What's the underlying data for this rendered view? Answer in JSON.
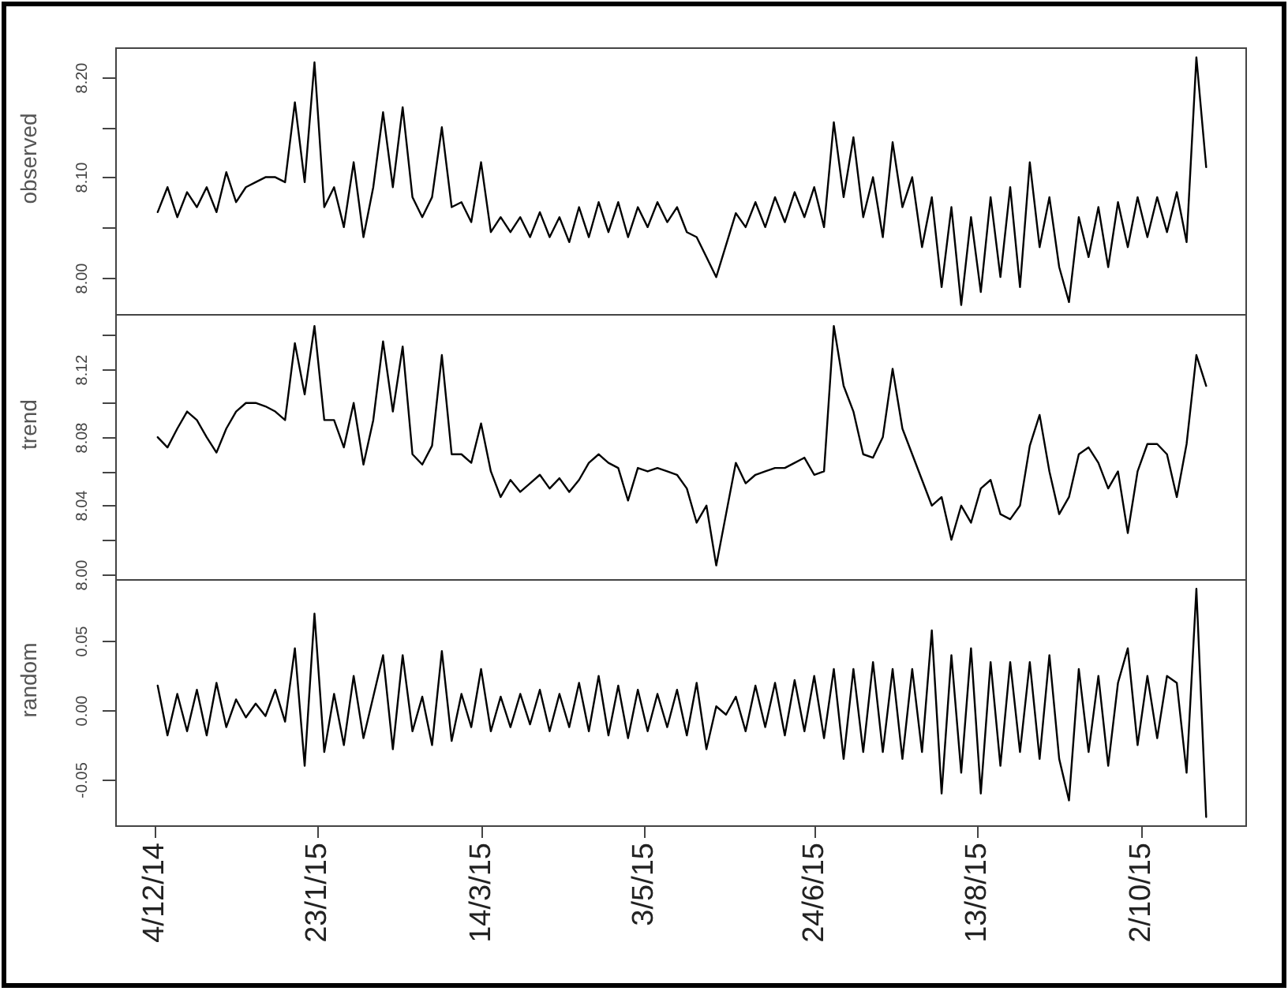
{
  "chart_data": [
    {
      "type": "line",
      "ylabel": "observed",
      "tick_labels": "y",
      "color": "#000000",
      "xlim": [
        "2014-11-22",
        "2015-11-03"
      ],
      "ylim": [
        7.963,
        8.23
      ],
      "yticks": [
        {
          "value": 8,
          "label": "8.00"
        },
        {
          "value": 8.05,
          "label": null
        },
        {
          "value": 8.1,
          "label": "8.10"
        },
        {
          "value": 8.15,
          "label": null
        },
        {
          "value": 8.2,
          "label": "8.20"
        }
      ],
      "x": [
        "2014-12-05",
        "2014-12-08",
        "2014-12-11",
        "2014-12-14",
        "2014-12-17",
        "2014-12-20",
        "2014-12-23",
        "2014-12-26",
        "2014-12-29",
        "2015-01-01",
        "2015-01-04",
        "2015-01-07",
        "2015-01-10",
        "2015-01-13",
        "2015-01-16",
        "2015-01-19",
        "2015-01-22",
        "2015-01-25",
        "2015-01-28",
        "2015-01-31",
        "2015-02-03",
        "2015-02-06",
        "2015-02-09",
        "2015-02-12",
        "2015-02-15",
        "2015-02-18",
        "2015-02-21",
        "2015-02-24",
        "2015-02-27",
        "2015-03-02",
        "2015-03-05",
        "2015-03-08",
        "2015-03-11",
        "2015-03-14",
        "2015-03-17",
        "2015-03-20",
        "2015-03-23",
        "2015-03-26",
        "2015-03-29",
        "2015-04-01",
        "2015-04-04",
        "2015-04-07",
        "2015-04-10",
        "2015-04-13",
        "2015-04-16",
        "2015-04-19",
        "2015-04-22",
        "2015-04-25",
        "2015-04-28",
        "2015-05-01",
        "2015-05-04",
        "2015-05-07",
        "2015-05-10",
        "2015-05-13",
        "2015-05-16",
        "2015-05-19",
        "2015-05-22",
        "2015-05-25",
        "2015-05-28",
        "2015-05-31",
        "2015-06-03",
        "2015-06-06",
        "2015-06-09",
        "2015-06-12",
        "2015-06-15",
        "2015-06-18",
        "2015-06-21",
        "2015-06-24",
        "2015-06-27",
        "2015-06-30",
        "2015-07-03",
        "2015-07-06",
        "2015-07-09",
        "2015-07-12",
        "2015-07-15",
        "2015-07-18",
        "2015-07-21",
        "2015-07-24",
        "2015-07-27",
        "2015-07-30",
        "2015-08-02",
        "2015-08-05",
        "2015-08-08",
        "2015-08-11",
        "2015-08-14",
        "2015-08-17",
        "2015-08-20",
        "2015-08-23",
        "2015-08-26",
        "2015-08-29",
        "2015-09-01",
        "2015-09-04",
        "2015-09-07",
        "2015-09-10",
        "2015-09-13",
        "2015-09-16",
        "2015-09-19",
        "2015-09-22",
        "2015-09-25",
        "2015-09-28",
        "2015-10-01",
        "2015-10-04",
        "2015-10-07",
        "2015-10-10",
        "2015-10-13",
        "2015-10-16",
        "2015-10-19",
        "2015-10-22"
      ],
      "values": [
        8.065,
        8.09,
        8.06,
        8.085,
        8.07,
        8.09,
        8.065,
        8.105,
        8.075,
        8.09,
        8.095,
        8.1,
        8.1,
        8.095,
        8.175,
        8.095,
        8.215,
        8.07,
        8.09,
        8.05,
        8.115,
        8.04,
        8.09,
        8.165,
        8.09,
        8.17,
        8.08,
        8.06,
        8.08,
        8.15,
        8.07,
        8.075,
        8.055,
        8.115,
        8.045,
        8.06,
        8.045,
        8.06,
        8.04,
        8.065,
        8.04,
        8.06,
        8.035,
        8.07,
        8.04,
        8.075,
        8.045,
        8.075,
        8.04,
        8.07,
        8.05,
        8.075,
        8.055,
        8.07,
        8.045,
        8.04,
        8.02,
        8.0,
        8.032,
        8.064,
        8.05,
        8.075,
        8.05,
        8.08,
        8.055,
        8.085,
        8.06,
        8.09,
        8.05,
        8.155,
        8.08,
        8.14,
        8.06,
        8.1,
        8.04,
        8.135,
        8.07,
        8.1,
        8.03,
        8.08,
        7.99,
        8.07,
        7.972,
        8.06,
        7.985,
        8.08,
        8.0,
        8.09,
        7.99,
        8.115,
        8.03,
        8.08,
        8.01,
        7.975,
        8.06,
        8.02,
        8.07,
        8.01,
        8.075,
        8.03,
        8.08,
        8.04,
        8.08,
        8.045,
        8.085,
        8.035,
        8.22,
        8.11
      ]
    },
    {
      "type": "line",
      "ylabel": "trend",
      "tick_labels": "y",
      "color": "#000000",
      "xlim": [
        "2014-11-22",
        "2015-11-03"
      ],
      "ylim": [
        7.997,
        8.152
      ],
      "yticks": [
        {
          "value": 8,
          "label": "8.00"
        },
        {
          "value": 8.02,
          "label": null
        },
        8.04,
        {
          "value": 8.06,
          "label": null
        },
        8.08,
        {
          "value": 8.1,
          "label": null
        },
        8.12,
        {
          "value": 8.14,
          "label": null
        }
      ],
      "x": [
        "2014-12-05",
        "2014-12-08",
        "2014-12-11",
        "2014-12-14",
        "2014-12-17",
        "2014-12-20",
        "2014-12-23",
        "2014-12-26",
        "2014-12-29",
        "2015-01-01",
        "2015-01-04",
        "2015-01-07",
        "2015-01-10",
        "2015-01-13",
        "2015-01-16",
        "2015-01-19",
        "2015-01-22",
        "2015-01-25",
        "2015-01-28",
        "2015-01-31",
        "2015-02-03",
        "2015-02-06",
        "2015-02-09",
        "2015-02-12",
        "2015-02-15",
        "2015-02-18",
        "2015-02-21",
        "2015-02-24",
        "2015-02-27",
        "2015-03-02",
        "2015-03-05",
        "2015-03-08",
        "2015-03-11",
        "2015-03-14",
        "2015-03-17",
        "2015-03-20",
        "2015-03-23",
        "2015-03-26",
        "2015-03-29",
        "2015-04-01",
        "2015-04-04",
        "2015-04-07",
        "2015-04-10",
        "2015-04-13",
        "2015-04-16",
        "2015-04-19",
        "2015-04-22",
        "2015-04-25",
        "2015-04-28",
        "2015-05-01",
        "2015-05-04",
        "2015-05-07",
        "2015-05-10",
        "2015-05-13",
        "2015-05-16",
        "2015-05-19",
        "2015-05-22",
        "2015-05-25",
        "2015-05-28",
        "2015-05-31",
        "2015-06-03",
        "2015-06-06",
        "2015-06-09",
        "2015-06-12",
        "2015-06-15",
        "2015-06-18",
        "2015-06-21",
        "2015-06-24",
        "2015-06-27",
        "2015-06-30",
        "2015-07-03",
        "2015-07-06",
        "2015-07-09",
        "2015-07-12",
        "2015-07-15",
        "2015-07-18",
        "2015-07-21",
        "2015-07-24",
        "2015-07-27",
        "2015-07-30",
        "2015-08-02",
        "2015-08-05",
        "2015-08-08",
        "2015-08-11",
        "2015-08-14",
        "2015-08-17",
        "2015-08-20",
        "2015-08-23",
        "2015-08-26",
        "2015-08-29",
        "2015-09-01",
        "2015-09-04",
        "2015-09-07",
        "2015-09-10",
        "2015-09-13",
        "2015-09-16",
        "2015-09-19",
        "2015-09-22",
        "2015-09-25",
        "2015-09-28",
        "2015-10-01",
        "2015-10-04",
        "2015-10-07",
        "2015-10-10",
        "2015-10-13",
        "2015-10-16",
        "2015-10-19",
        "2015-10-22"
      ],
      "values": [
        8.08,
        8.074,
        8.085,
        8.095,
        8.09,
        8.08,
        8.071,
        8.085,
        8.095,
        8.1,
        8.1,
        8.098,
        8.095,
        8.09,
        8.135,
        8.105,
        8.145,
        8.09,
        8.09,
        8.074,
        8.1,
        8.064,
        8.09,
        8.136,
        8.095,
        8.133,
        8.07,
        8.064,
        8.075,
        8.128,
        8.07,
        8.07,
        8.065,
        8.088,
        8.06,
        8.045,
        8.055,
        8.048,
        8.053,
        8.058,
        8.05,
        8.056,
        8.048,
        8.055,
        8.065,
        8.07,
        8.065,
        8.062,
        8.043,
        8.062,
        8.06,
        8.062,
        8.06,
        8.058,
        8.05,
        8.03,
        8.04,
        8.005,
        8.035,
        8.065,
        8.053,
        8.058,
        8.06,
        8.062,
        8.062,
        8.065,
        8.068,
        8.058,
        8.06,
        8.145,
        8.11,
        8.095,
        8.07,
        8.068,
        8.08,
        8.12,
        8.085,
        8.07,
        8.055,
        8.04,
        8.045,
        8.02,
        8.04,
        8.03,
        8.05,
        8.055,
        8.035,
        8.032,
        8.04,
        8.075,
        8.093,
        8.06,
        8.035,
        8.045,
        8.07,
        8.074,
        8.065,
        8.05,
        8.06,
        8.024,
        8.06,
        8.076,
        8.076,
        8.07,
        8.045,
        8.076,
        8.128,
        8.11
      ]
    },
    {
      "type": "line",
      "ylabel": "random",
      "color": "#000000",
      "xlim": [
        "2014-11-22",
        "2015-11-03"
      ],
      "ylim": [
        -0.083,
        0.095
      ],
      "xticks": [
        {
          "value": "2014-12-04",
          "label": "4/12/14"
        },
        {
          "value": "2015-01-23",
          "label": "23/1/15"
        },
        {
          "value": "2015-03-14",
          "label": "14/3/15"
        },
        {
          "value": "2015-05-03",
          "label": "3/5/15"
        },
        {
          "value": "2015-06-24",
          "label": "24/6/15"
        },
        {
          "value": "2015-08-13",
          "label": "13/8/15"
        },
        {
          "value": "2015-10-02",
          "label": "2/10/15"
        }
      ],
      "yticks": [
        -0.05,
        {
          "value": 0,
          "label": "0.00"
        },
        0.05
      ],
      "x": [
        "2014-12-05",
        "2014-12-08",
        "2014-12-11",
        "2014-12-14",
        "2014-12-17",
        "2014-12-20",
        "2014-12-23",
        "2014-12-26",
        "2014-12-29",
        "2015-01-01",
        "2015-01-04",
        "2015-01-07",
        "2015-01-10",
        "2015-01-13",
        "2015-01-16",
        "2015-01-19",
        "2015-01-22",
        "2015-01-25",
        "2015-01-28",
        "2015-01-31",
        "2015-02-03",
        "2015-02-06",
        "2015-02-09",
        "2015-02-12",
        "2015-02-15",
        "2015-02-18",
        "2015-02-21",
        "2015-02-24",
        "2015-02-27",
        "2015-03-02",
        "2015-03-05",
        "2015-03-08",
        "2015-03-11",
        "2015-03-14",
        "2015-03-17",
        "2015-03-20",
        "2015-03-23",
        "2015-03-26",
        "2015-03-29",
        "2015-04-01",
        "2015-04-04",
        "2015-04-07",
        "2015-04-10",
        "2015-04-13",
        "2015-04-16",
        "2015-04-19",
        "2015-04-22",
        "2015-04-25",
        "2015-04-28",
        "2015-05-01",
        "2015-05-04",
        "2015-05-07",
        "2015-05-10",
        "2015-05-13",
        "2015-05-16",
        "2015-05-19",
        "2015-05-22",
        "2015-05-25",
        "2015-05-28",
        "2015-05-31",
        "2015-06-03",
        "2015-06-06",
        "2015-06-09",
        "2015-06-12",
        "2015-06-15",
        "2015-06-18",
        "2015-06-21",
        "2015-06-24",
        "2015-06-27",
        "2015-06-30",
        "2015-07-03",
        "2015-07-06",
        "2015-07-09",
        "2015-07-12",
        "2015-07-15",
        "2015-07-18",
        "2015-07-21",
        "2015-07-24",
        "2015-07-27",
        "2015-07-30",
        "2015-08-02",
        "2015-08-05",
        "2015-08-08",
        "2015-08-11",
        "2015-08-14",
        "2015-08-17",
        "2015-08-20",
        "2015-08-23",
        "2015-08-26",
        "2015-08-29",
        "2015-09-01",
        "2015-09-04",
        "2015-09-07",
        "2015-09-10",
        "2015-09-13",
        "2015-09-16",
        "2015-09-19",
        "2015-09-22",
        "2015-09-25",
        "2015-09-28",
        "2015-10-01",
        "2015-10-04",
        "2015-10-07",
        "2015-10-10",
        "2015-10-13",
        "2015-10-16",
        "2015-10-19",
        "2015-10-22"
      ],
      "values": [
        0.018,
        -0.018,
        0.012,
        -0.015,
        0.015,
        -0.018,
        0.02,
        -0.012,
        0.008,
        -0.005,
        0.005,
        -0.004,
        0.015,
        -0.008,
        0.045,
        -0.04,
        0.07,
        -0.03,
        0.012,
        -0.025,
        0.025,
        -0.02,
        0.01,
        0.04,
        -0.028,
        0.04,
        -0.015,
        0.01,
        -0.025,
        0.043,
        -0.022,
        0.012,
        -0.012,
        0.03,
        -0.015,
        0.01,
        -0.012,
        0.012,
        -0.01,
        0.015,
        -0.015,
        0.012,
        -0.012,
        0.02,
        -0.015,
        0.025,
        -0.018,
        0.018,
        -0.02,
        0.015,
        -0.015,
        0.012,
        -0.012,
        0.015,
        -0.018,
        0.02,
        -0.028,
        0.003,
        -0.003,
        0.01,
        -0.015,
        0.018,
        -0.012,
        0.02,
        -0.018,
        0.022,
        -0.015,
        0.025,
        -0.02,
        0.03,
        -0.035,
        0.03,
        -0.03,
        0.035,
        -0.03,
        0.03,
        -0.035,
        0.03,
        -0.03,
        0.058,
        -0.06,
        0.04,
        -0.045,
        0.045,
        -0.06,
        0.035,
        -0.04,
        0.035,
        -0.03,
        0.035,
        -0.035,
        0.04,
        -0.035,
        -0.065,
        0.03,
        -0.03,
        0.025,
        -0.04,
        0.02,
        0.045,
        -0.025,
        0.025,
        -0.02,
        0.025,
        0.02,
        -0.045,
        0.088,
        -0.077
      ]
    }
  ]
}
